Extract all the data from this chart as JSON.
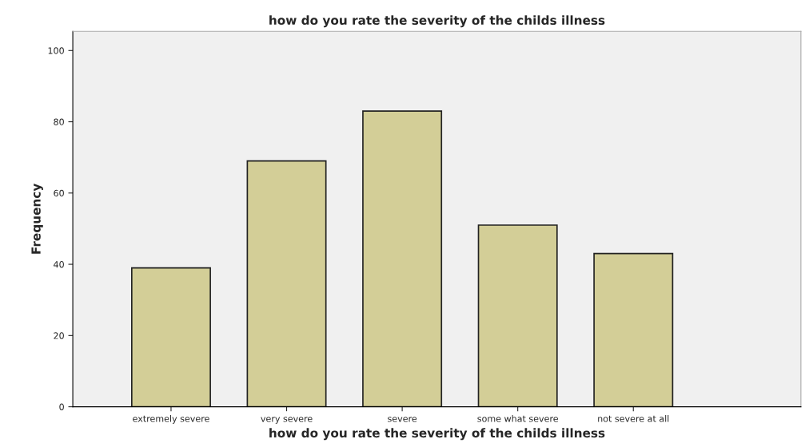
{
  "chart_data": {
    "type": "bar",
    "title": "how do you rate the severity of the childs illness",
    "xlabel": "how do you rate the severity of the childs illness",
    "ylabel": "Frequency",
    "categories": [
      "extremely severe",
      "very severe",
      "severe",
      "some what severe",
      "not severe at all"
    ],
    "values": [
      39,
      69,
      83,
      51,
      43
    ],
    "color": "#d3ce97",
    "ylim": [
      0,
      105.4
    ],
    "yticks": [
      0,
      20,
      40,
      60,
      80,
      100
    ],
    "grid": false
  }
}
